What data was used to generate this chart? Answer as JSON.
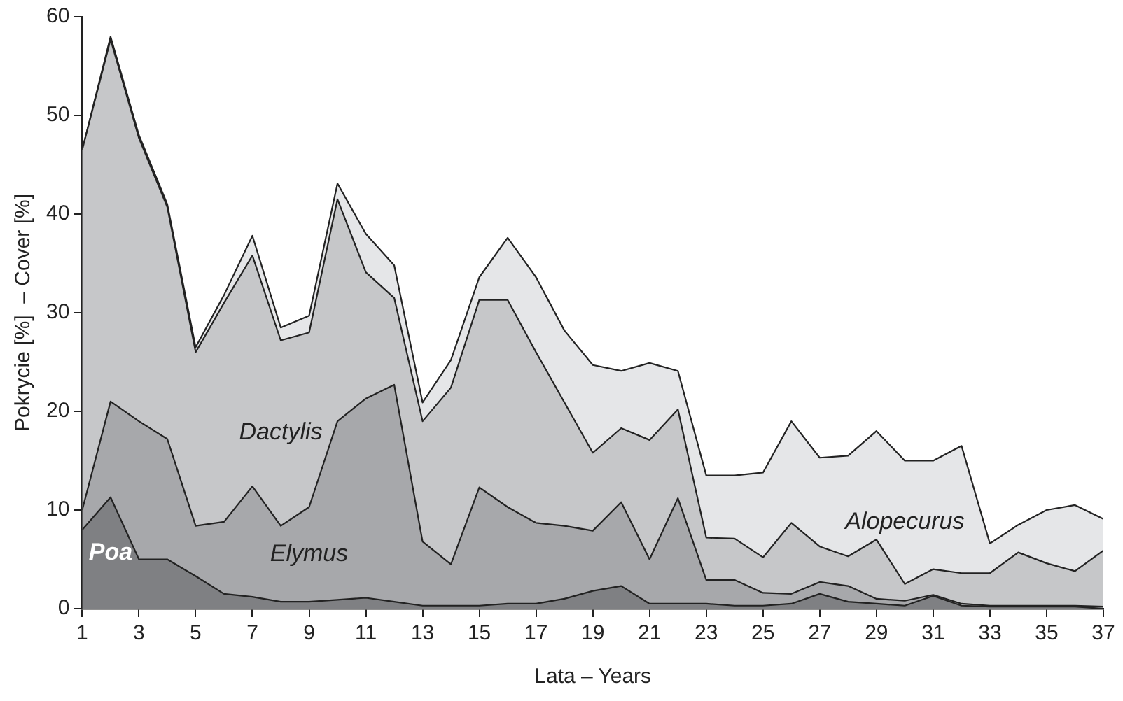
{
  "chart_data": {
    "type": "area",
    "stacked": true,
    "xlabel": "Lata – Years",
    "ylabel": "Pokrycie [%]  – Cover [%]",
    "x": [
      1,
      2,
      3,
      4,
      5,
      6,
      7,
      8,
      9,
      10,
      11,
      12,
      13,
      14,
      15,
      16,
      17,
      18,
      19,
      20,
      21,
      22,
      23,
      24,
      25,
      26,
      27,
      28,
      29,
      30,
      31,
      32,
      33,
      34,
      35,
      36,
      37
    ],
    "xlim": [
      1,
      37
    ],
    "xticks": [
      1,
      3,
      5,
      7,
      9,
      11,
      13,
      15,
      17,
      19,
      21,
      23,
      25,
      27,
      29,
      31,
      33,
      35,
      37
    ],
    "ylim": [
      0,
      60
    ],
    "yticks": [
      0,
      10,
      20,
      30,
      40,
      50,
      60
    ],
    "grid": false,
    "legend": false,
    "series": [
      {
        "name": "Poa",
        "color": "#7f8083",
        "values": [
          8,
          11.3,
          5,
          5,
          3.3,
          1.5,
          1.2,
          0.7,
          0.7,
          0.9,
          1.1,
          0.7,
          0.3,
          0.3,
          0.3,
          0.5,
          0.5,
          1,
          1.8,
          2.3,
          0.5,
          0.5,
          0.5,
          0.3,
          0.3,
          0.5,
          1.5,
          0.7,
          0.5,
          0.3,
          1.3,
          0.3,
          0.2,
          0.2,
          0.2,
          0.2,
          0
        ]
      },
      {
        "name": "Elymus",
        "color": "#a7a8ab",
        "values": [
          2,
          9.7,
          14,
          12.2,
          5.1,
          7.3,
          11.2,
          7.7,
          9.6,
          18.1,
          20.2,
          22,
          6.5,
          4.2,
          12,
          9.8,
          8.2,
          7.4,
          6.1,
          8.5,
          4.5,
          10.7,
          2.4,
          2.6,
          1.3,
          1,
          1.2,
          1.6,
          0.5,
          0.5,
          0.1,
          0.2,
          0.1,
          0.1,
          0.1,
          0.1,
          0.2
        ]
      },
      {
        "name": "Dactylis",
        "color": "#c6c7c9",
        "values": [
          36.5,
          36.7,
          28.7,
          23.5,
          17.6,
          22.2,
          23.4,
          18.8,
          17.7,
          22.5,
          12.8,
          8.8,
          12.2,
          17.9,
          19,
          21,
          17.3,
          12.5,
          7.9,
          7.5,
          12.1,
          9,
          4.3,
          4.2,
          3.6,
          7.2,
          3.6,
          3,
          6,
          1.7,
          2.6,
          3.1,
          3.3,
          5.4,
          4.3,
          3.5,
          5.7
        ]
      },
      {
        "name": "Alopecurus",
        "color": "#e5e6e8",
        "values": [
          0,
          0.3,
          0.3,
          0.3,
          0.5,
          0.8,
          2,
          1.3,
          1.7,
          1.6,
          3.9,
          3.3,
          1.9,
          2.8,
          2.3,
          6.3,
          7.6,
          7.3,
          8.9,
          5.8,
          7.8,
          3.9,
          6.3,
          6.4,
          8.6,
          10.3,
          9,
          10.2,
          11,
          12.5,
          11,
          12.9,
          3,
          2.8,
          5.4,
          6.7,
          3.2
        ]
      }
    ]
  }
}
